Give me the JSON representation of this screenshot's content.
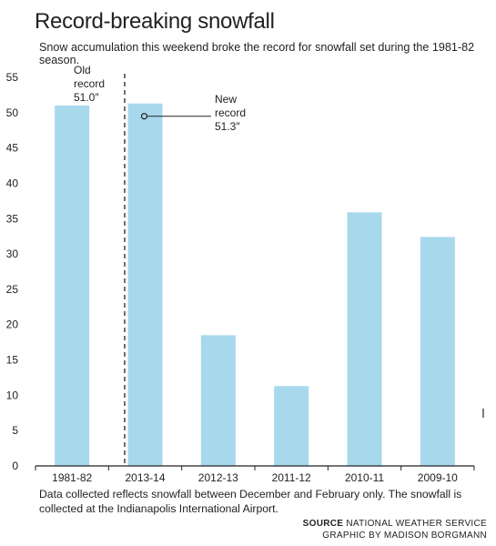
{
  "title": "Record-breaking snowfall",
  "subtitle": "Snow accumulation this weekend broke the record for snowfall set during the 1981-82 season.",
  "chart_data": {
    "type": "bar",
    "categories": [
      "1981-82",
      "2013-14",
      "2012-13",
      "2011-12",
      "2010-11",
      "2009-10"
    ],
    "values": [
      51.0,
      51.3,
      18.5,
      11.3,
      35.9,
      32.4
    ],
    "ylim": [
      0,
      55
    ],
    "yticks": [
      0,
      5,
      10,
      15,
      20,
      25,
      30,
      35,
      40,
      45,
      50,
      55
    ],
    "bar_color": "#a8d8ec",
    "grid": false,
    "annotations": {
      "old_record": [
        "Old",
        "record",
        "51.0″"
      ],
      "new_record": [
        "New",
        "record",
        "51.3″"
      ]
    }
  },
  "footnote": "Data collected reflects snowfall between December and February only. The snowfall is collected at the Indianapolis International Airport.",
  "credit": {
    "source_label": "SOURCE",
    "source_text": "NATIONAL WEATHER SERVICE",
    "graphic_by": "GRAPHIC BY MADISON BORGMANN"
  }
}
